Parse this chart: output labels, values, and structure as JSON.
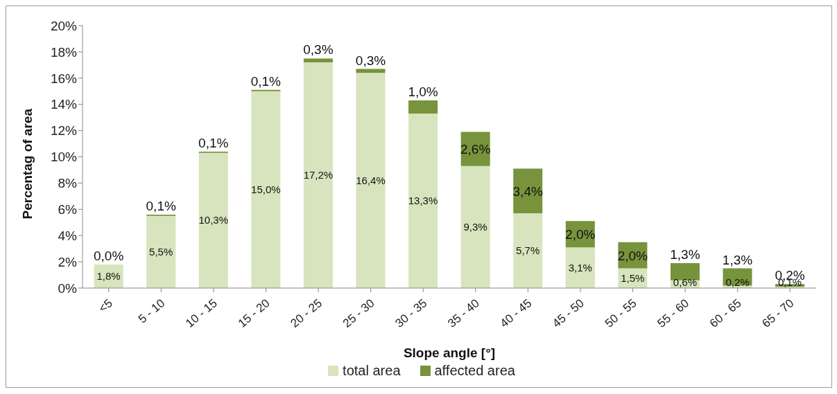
{
  "chart_data": {
    "type": "bar",
    "stacked": true,
    "xlabel": "Slope angle [°]",
    "ylabel": "Percentag of area",
    "categories": [
      "<5",
      "5 - 10",
      "10 - 15",
      "15 - 20",
      "20 - 25",
      "25 - 30",
      "30 - 35",
      "35 - 40",
      "40 - 45",
      "45 - 50",
      "50 - 55",
      "55 - 60",
      "60 - 65",
      "65 - 70"
    ],
    "series": [
      {
        "name": "total area",
        "color": "#d7e4bd",
        "values": [
          1.8,
          5.5,
          10.3,
          15.0,
          17.2,
          16.4,
          13.3,
          9.3,
          5.7,
          3.1,
          1.5,
          0.6,
          0.2,
          0.1
        ],
        "value_labels": [
          "1,8%",
          "5,5%",
          "10,3%",
          "15,0%",
          "17,2%",
          "16,4%",
          "13,3%",
          "9,3%",
          "5,7%",
          "3,1%",
          "1,5%",
          "0,6%",
          "0,2%",
          "0,1%"
        ]
      },
      {
        "name": "affected area",
        "color": "#77933c",
        "values": [
          0.0,
          0.1,
          0.1,
          0.1,
          0.3,
          0.3,
          1.0,
          2.6,
          3.4,
          2.0,
          2.0,
          1.3,
          1.3,
          0.2
        ],
        "value_labels": [
          "0,0%",
          "0,1%",
          "0,1%",
          "0,1%",
          "0,3%",
          "0,3%",
          "1,0%",
          "2,6%",
          "3,4%",
          "2,0%",
          "2,0%",
          "1,3%",
          "1,3%",
          "0,2%"
        ]
      }
    ],
    "ylim": [
      0,
      20
    ],
    "yticks": [
      {
        "value": 0,
        "label": "0%"
      },
      {
        "value": 2,
        "label": "2%"
      },
      {
        "value": 4,
        "label": "4%"
      },
      {
        "value": 6,
        "label": "6%"
      },
      {
        "value": 8,
        "label": "8%"
      },
      {
        "value": 10,
        "label": "10%"
      },
      {
        "value": 12,
        "label": "12%"
      },
      {
        "value": 14,
        "label": "14%"
      },
      {
        "value": 16,
        "label": "16%"
      },
      {
        "value": 18,
        "label": "18%"
      },
      {
        "value": 20,
        "label": "20%"
      }
    ],
    "grid": false,
    "legend": "bottom"
  }
}
